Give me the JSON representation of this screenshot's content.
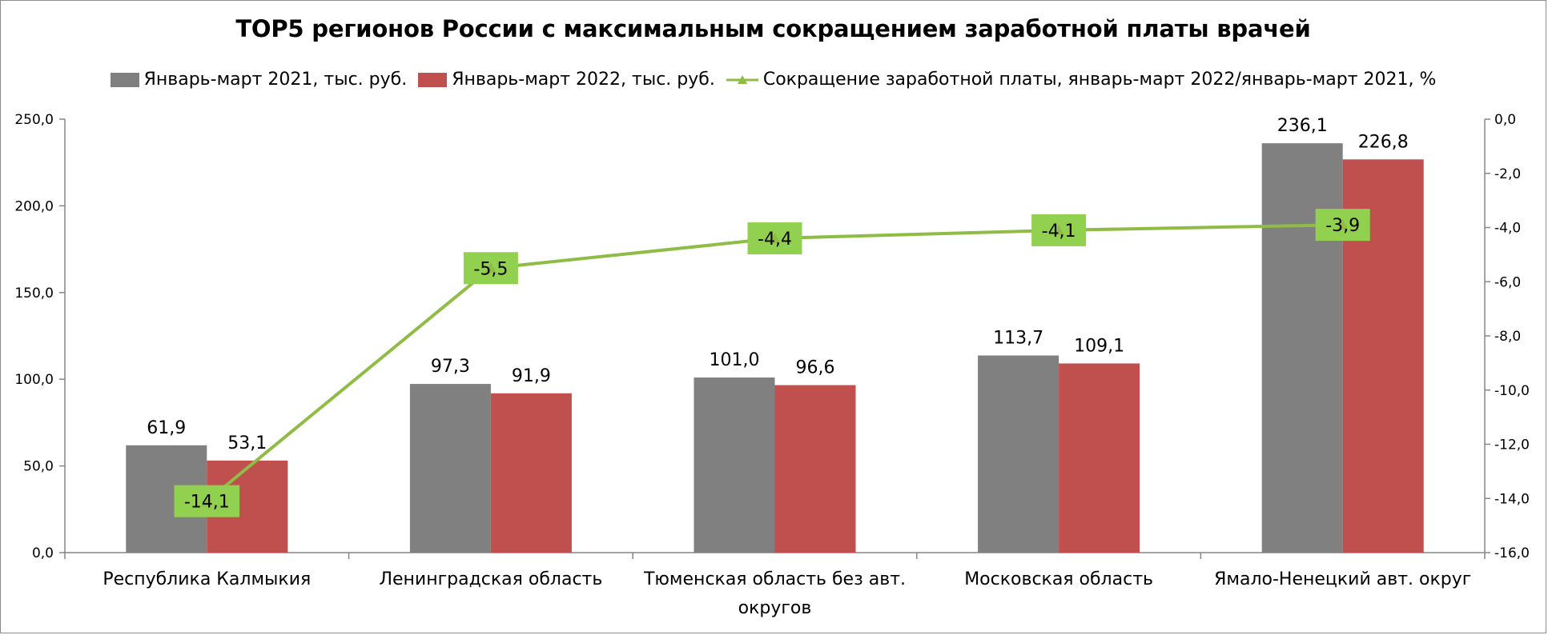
{
  "chart_data": {
    "type": "bar",
    "title": "TOP5 регионов России с максимальным сокращением заработной платы врачей",
    "categories": [
      [
        "Республика Калмыкия"
      ],
      [
        "Ленинградская область"
      ],
      [
        "Тюменская область без авт.",
        "округов"
      ],
      [
        "Московская область"
      ],
      [
        "Ямало-Ненецкий авт. округ"
      ]
    ],
    "series": [
      {
        "name": "Январь-март 2021, тыс. руб.",
        "kind": "bar",
        "axis": "left",
        "color": "#808080",
        "values": [
          61.9,
          97.3,
          101.0,
          113.7,
          236.1
        ],
        "labels": [
          "61,9",
          "97,3",
          "101,0",
          "113,7",
          "236,1"
        ]
      },
      {
        "name": "Январь-март 2022, тыс. руб.",
        "kind": "bar",
        "axis": "left",
        "color": "#c0504d",
        "values": [
          53.1,
          91.9,
          96.6,
          109.1,
          226.8
        ],
        "labels": [
          "53,1",
          "91,9",
          "96,6",
          "109,1",
          "226,8"
        ]
      },
      {
        "name": "Сокращение заработной платы, январь-март 2022/январь-март 2021, %",
        "kind": "line",
        "axis": "right",
        "color": "#8fbc45",
        "label_bg": "#92d050",
        "values": [
          -14.1,
          -5.5,
          -4.4,
          -4.1,
          -3.9
        ],
        "labels": [
          "-14,1",
          "-5,5",
          "-4,4",
          "-4,1",
          "-3,9"
        ]
      }
    ],
    "y_left": {
      "min": 0,
      "max": 250,
      "step": 50,
      "tick_labels": [
        "0,0",
        "50,0",
        "100,0",
        "150,0",
        "200,0",
        "250,0"
      ]
    },
    "y_right": {
      "min": -16,
      "max": 0,
      "step": 2,
      "tick_labels": [
        "-16,0",
        "-14,0",
        "-12,0",
        "-10,0",
        "-8,0",
        "-6,0",
        "-4,0",
        "-2,0",
        "0,0"
      ]
    },
    "grid": false,
    "legend_position": "top"
  }
}
